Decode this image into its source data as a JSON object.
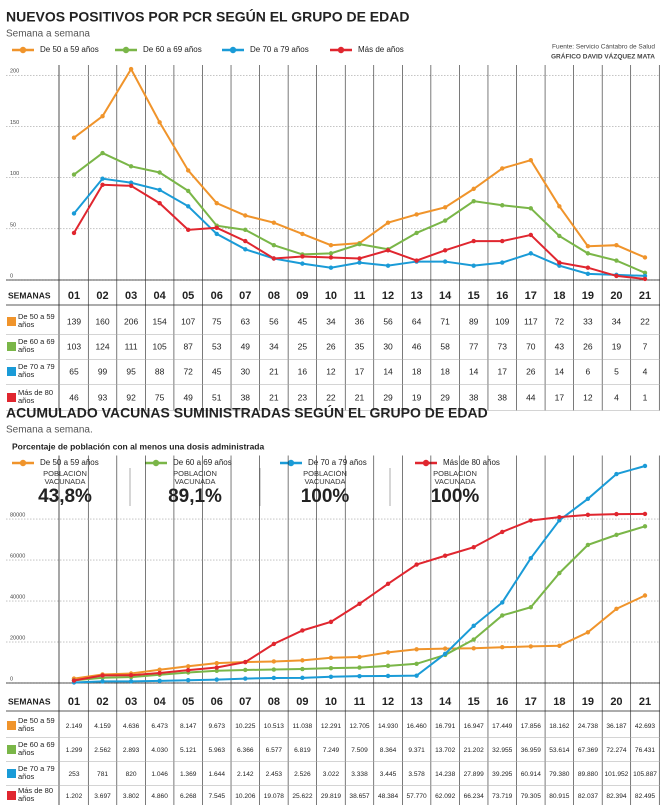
{
  "chart_data": [
    {
      "type": "line",
      "title": "NUEVOS POSITIVOS POR PCR SEGÚN EL GRUPO DE EDAD",
      "subtitle": "Semana a semana",
      "source": "Fuente: Servicio Cántabro de Salud",
      "credit": "GRÁFICO DAVID VÁZQUEZ MATA",
      "x_axis_label": "SEMANAS",
      "categories": [
        "01",
        "02",
        "03",
        "04",
        "05",
        "06",
        "07",
        "08",
        "09",
        "10",
        "11",
        "12",
        "13",
        "14",
        "15",
        "16",
        "17",
        "18",
        "19",
        "20",
        "21"
      ],
      "ylim": [
        0,
        210
      ],
      "yticks": [
        0,
        50,
        100,
        150,
        200
      ],
      "series": [
        {
          "name": "De 50 a 59 años",
          "color": "#f0942b",
          "values": [
            139,
            160,
            206,
            154,
            107,
            75,
            63,
            56,
            45,
            34,
            36,
            56,
            64,
            71,
            89,
            109,
            117,
            72,
            33,
            34,
            22
          ]
        },
        {
          "name": "De 60 a 69 años",
          "color": "#7ab648",
          "values": [
            103,
            124,
            111,
            105,
            87,
            53,
            49,
            34,
            25,
            26,
            35,
            30,
            46,
            58,
            77,
            73,
            70,
            43,
            26,
            19,
            7
          ]
        },
        {
          "name": "De 70 a 79 años",
          "color": "#1a9bd7",
          "values": [
            65,
            99,
            95,
            88,
            72,
            45,
            30,
            21,
            16,
            12,
            17,
            14,
            18,
            18,
            14,
            17,
            26,
            14,
            6,
            5,
            4
          ]
        },
        {
          "name": "Más de años",
          "color": "#e0262f",
          "values": [
            46,
            93,
            92,
            75,
            49,
            51,
            38,
            21,
            23,
            22,
            21,
            29,
            19,
            29,
            38,
            38,
            44,
            17,
            12,
            4,
            1
          ]
        }
      ],
      "row_labels": [
        "De 50 a 59 años",
        "De 60 a 69 años",
        "De 70 a 79 años",
        "Más de 80 años"
      ]
    },
    {
      "type": "line",
      "title": "ACUMULADO VACUNAS SUMINISTRADAS SEGÚN EL GRUPO DE EDAD",
      "subtitle": "Semana a semana.",
      "subtitle2": "Porcentaje de población con al menos una dosis administrada",
      "x_axis_label": "SEMANAS",
      "categories": [
        "01",
        "02",
        "03",
        "04",
        "05",
        "06",
        "07",
        "08",
        "09",
        "10",
        "11",
        "12",
        "13",
        "14",
        "15",
        "16",
        "17",
        "18",
        "19",
        "20",
        "21"
      ],
      "ylim": [
        0,
        111000
      ],
      "yticks": [
        0,
        20000,
        40000,
        60000,
        80000
      ],
      "stats": [
        {
          "label": "POBLACIÓN VACUNADA",
          "value": "43,8%"
        },
        {
          "label": "POBLACIÓN VACUNADA",
          "value": "89,1%"
        },
        {
          "label": "POBLACIÓN VACUNADA",
          "value": "100%"
        },
        {
          "label": "POBLACIÓN VACUNADA",
          "value": "100%"
        }
      ],
      "series": [
        {
          "name": "De 50 a 59 años",
          "color": "#f0942b",
          "values": [
            2149,
            4159,
            4636,
            6473,
            8147,
            9673,
            10225,
            10513,
            11038,
            12291,
            12705,
            14930,
            16460,
            16791,
            16947,
            17449,
            17856,
            18162,
            24738,
            36187,
            42693
          ],
          "value_labels": [
            "2.149",
            "4.159",
            "4.636",
            "6.473",
            "8.147",
            "9.673",
            "10.225",
            "10.513",
            "11.038",
            "12.291",
            "12.705",
            "14.930",
            "16.460",
            "16.791",
            "16.947",
            "17.449",
            "17.856",
            "18.162",
            "24.738",
            "36.187",
            "42.693"
          ]
        },
        {
          "name": "De 60 a 69 años",
          "color": "#7ab648",
          "values": [
            1299,
            2562,
            2893,
            4030,
            5121,
            5963,
            6366,
            6577,
            6819,
            7249,
            7509,
            8364,
            9371,
            13702,
            21202,
            32955,
            36959,
            53614,
            67369,
            72274,
            76431
          ],
          "value_labels": [
            "1.299",
            "2.562",
            "2.893",
            "4.030",
            "5.121",
            "5.963",
            "6.366",
            "6.577",
            "6.819",
            "7.249",
            "7.509",
            "8.364",
            "9.371",
            "13.702",
            "21.202",
            "32.955",
            "36.959",
            "53.614",
            "67.369",
            "72.274",
            "76.431"
          ]
        },
        {
          "name": "De 70 a 79 años",
          "color": "#1a9bd7",
          "values": [
            253,
            781,
            820,
            1046,
            1369,
            1644,
            2142,
            2453,
            2526,
            3022,
            3338,
            3445,
            3578,
            14238,
            27899,
            39295,
            60914,
            79380,
            89880,
            101952,
            105887
          ],
          "value_labels": [
            "253",
            "781",
            "820",
            "1.046",
            "1.369",
            "1.644",
            "2.142",
            "2.453",
            "2.526",
            "3.022",
            "3.338",
            "3.445",
            "3.578",
            "14.238",
            "27.899",
            "39.295",
            "60.914",
            "79.380",
            "89.880",
            "101.952",
            "105.887"
          ]
        },
        {
          "name": "Más de 80 años",
          "color": "#e0262f",
          "values": [
            1202,
            3697,
            3802,
            4860,
            6268,
            7545,
            10206,
            19078,
            25622,
            29819,
            38657,
            48384,
            57770,
            62092,
            66234,
            73719,
            79305,
            80915,
            82037,
            82394,
            82495
          ],
          "value_labels": [
            "1.202",
            "3.697",
            "3.802",
            "4.860",
            "6.268",
            "7.545",
            "10.206",
            "19.078",
            "25.622",
            "29.819",
            "38.657",
            "48.384",
            "57.770",
            "62.092",
            "66.234",
            "73.719",
            "79.305",
            "80.915",
            "82.037",
            "82.394",
            "82.495"
          ]
        }
      ],
      "row_labels": [
        "De 50 a 59 años",
        "De 60 a 69 años",
        "De 70 a 79 años",
        "Más de 80 años"
      ]
    }
  ]
}
